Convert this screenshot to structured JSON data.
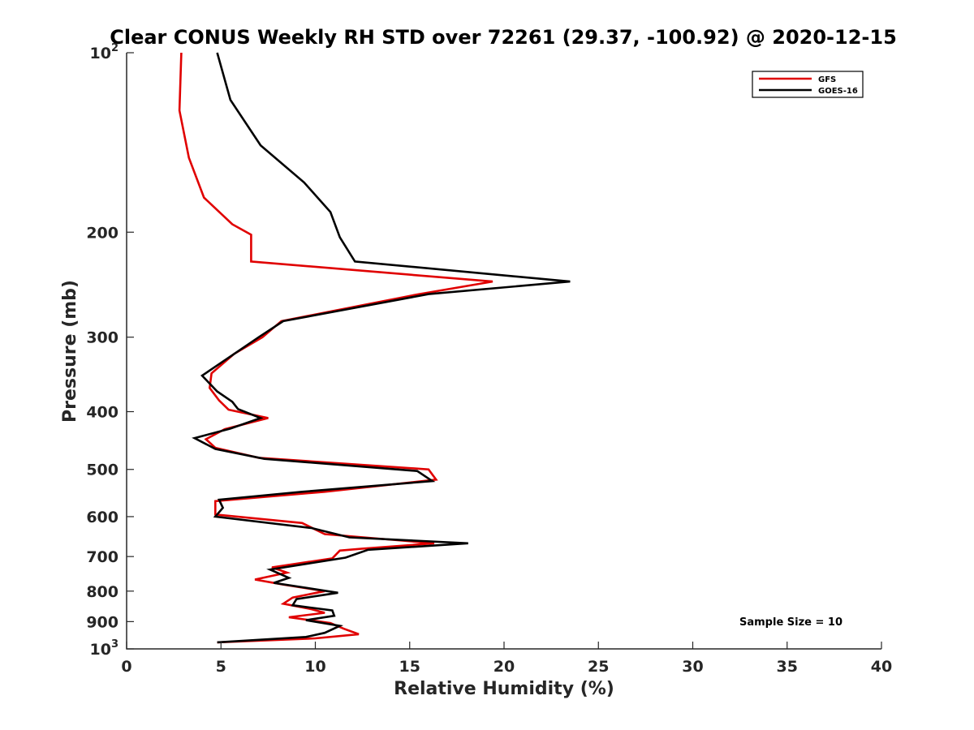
{
  "chart_data": {
    "type": "line",
    "title": "Clear CONUS Weekly RH STD over 72261 (29.37, -100.92) @ 2020-12-15",
    "xlabel": "Relative Humidity (%)",
    "ylabel": "Pressure (mb)",
    "xlim": [
      0,
      40
    ],
    "ylim": [
      100,
      1000
    ],
    "y_scale": "log",
    "y_reversed": true,
    "xticks": [
      0,
      5,
      10,
      15,
      20,
      25,
      30,
      35,
      40
    ],
    "xtick_labels": [
      "0",
      "5",
      "10",
      "15",
      "20",
      "25",
      "30",
      "35",
      "40"
    ],
    "yticks": [
      100,
      200,
      300,
      400,
      500,
      600,
      700,
      800,
      900,
      1000
    ],
    "ytick_labels": [
      {
        "base": "10",
        "exp": "2"
      },
      {
        "base": "200",
        "exp": ""
      },
      {
        "base": "300",
        "exp": ""
      },
      {
        "base": "400",
        "exp": ""
      },
      {
        "base": "500",
        "exp": ""
      },
      {
        "base": "600",
        "exp": ""
      },
      {
        "base": "700",
        "exp": ""
      },
      {
        "base": "800",
        "exp": ""
      },
      {
        "base": "900",
        "exp": ""
      },
      {
        "base": "10",
        "exp": "3"
      }
    ],
    "grid": false,
    "legend_position": "top-right",
    "annotation": "Sample Size = 10",
    "series": [
      {
        "name": "GFS",
        "color": "#e00000",
        "points": [
          [
            2.9,
            100
          ],
          [
            2.8,
            125
          ],
          [
            3.3,
            150
          ],
          [
            4.1,
            175
          ],
          [
            5.6,
            194
          ],
          [
            6.6,
            202
          ],
          [
            6.6,
            224
          ],
          [
            19.4,
            242
          ],
          [
            15.5,
            254
          ],
          [
            8.2,
            282
          ],
          [
            7.2,
            300
          ],
          [
            5.7,
            320
          ],
          [
            4.5,
            345
          ],
          [
            4.4,
            365
          ],
          [
            4.9,
            383
          ],
          [
            5.4,
            397
          ],
          [
            7.5,
            410
          ],
          [
            5.2,
            428
          ],
          [
            4.2,
            445
          ],
          [
            4.7,
            460
          ],
          [
            7.0,
            478
          ],
          [
            16.0,
            500
          ],
          [
            16.4,
            520
          ],
          [
            10.5,
            545
          ],
          [
            4.7,
            565
          ],
          [
            4.7,
            595
          ],
          [
            9.3,
            615
          ],
          [
            10.5,
            642
          ],
          [
            16.3,
            665
          ],
          [
            12.5,
            679
          ],
          [
            11.3,
            684
          ],
          [
            10.9,
            705
          ],
          [
            7.7,
            730
          ],
          [
            8.5,
            745
          ],
          [
            6.8,
            765
          ],
          [
            8.3,
            780
          ],
          [
            10.5,
            800
          ],
          [
            8.8,
            820
          ],
          [
            8.3,
            840
          ],
          [
            9.8,
            858
          ],
          [
            10.5,
            870
          ],
          [
            8.6,
            885
          ],
          [
            10.8,
            905
          ],
          [
            11.5,
            925
          ],
          [
            12.3,
            945
          ],
          [
            10.0,
            960
          ],
          [
            4.8,
            975
          ]
        ]
      },
      {
        "name": "GOES-16",
        "color": "#000000",
        "points": [
          [
            4.8,
            100
          ],
          [
            5.5,
            120
          ],
          [
            7.1,
            143
          ],
          [
            9.4,
            165
          ],
          [
            10.8,
            185
          ],
          [
            11.3,
            204
          ],
          [
            12.1,
            224
          ],
          [
            23.5,
            242
          ],
          [
            16.0,
            254
          ],
          [
            8.3,
            282
          ],
          [
            7.0,
            300
          ],
          [
            5.7,
            320
          ],
          [
            4.0,
            348
          ],
          [
            4.8,
            370
          ],
          [
            5.6,
            385
          ],
          [
            5.9,
            396
          ],
          [
            7.1,
            410
          ],
          [
            5.5,
            427
          ],
          [
            3.6,
            443
          ],
          [
            4.7,
            462
          ],
          [
            7.3,
            480
          ],
          [
            15.4,
            503
          ],
          [
            16.2,
            523
          ],
          [
            9.3,
            545
          ],
          [
            4.9,
            562
          ],
          [
            5.1,
            580
          ],
          [
            4.7,
            600
          ],
          [
            9.8,
            627
          ],
          [
            11.8,
            650
          ],
          [
            18.1,
            665
          ],
          [
            12.8,
            682
          ],
          [
            11.6,
            703
          ],
          [
            7.6,
            736
          ],
          [
            8.6,
            760
          ],
          [
            7.8,
            775
          ],
          [
            11.2,
            805
          ],
          [
            9.0,
            825
          ],
          [
            8.8,
            845
          ],
          [
            10.9,
            862
          ],
          [
            11.0,
            880
          ],
          [
            9.5,
            895
          ],
          [
            11.3,
            915
          ],
          [
            10.5,
            940
          ],
          [
            9.5,
            955
          ],
          [
            4.8,
            975
          ]
        ]
      }
    ]
  }
}
